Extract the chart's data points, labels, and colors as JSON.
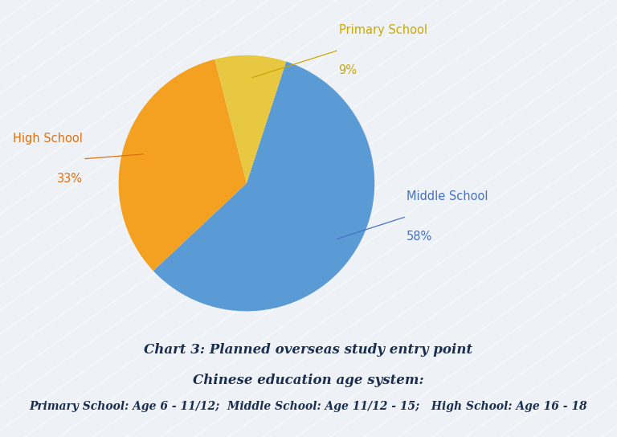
{
  "slices": [
    {
      "label": "Middle School",
      "value": 58,
      "color": "#5b9bd5",
      "text_color": "#4472c4",
      "pct_color": "#4472c4"
    },
    {
      "label": "High School",
      "value": 33,
      "color": "#f4a020",
      "text_color": "#e07010",
      "pct_color": "#e07010"
    },
    {
      "label": "Primary School",
      "value": 9,
      "color": "#e8c840",
      "text_color": "#c8a800",
      "pct_color": "#c8a800"
    }
  ],
  "startangle": 72,
  "chart_title": "Chart 3: Planned overseas study entry point",
  "subtitle": "Chinese education age system:",
  "footnote": "Primary School: Age 6 - 11/12;  Middle School: Age 11/12 - 15;   High School: Age 16 - 18",
  "bg_color": "#eef2f7",
  "title_color": "#1a2e50",
  "title_fontsize": 12,
  "footnote_fontsize": 10
}
